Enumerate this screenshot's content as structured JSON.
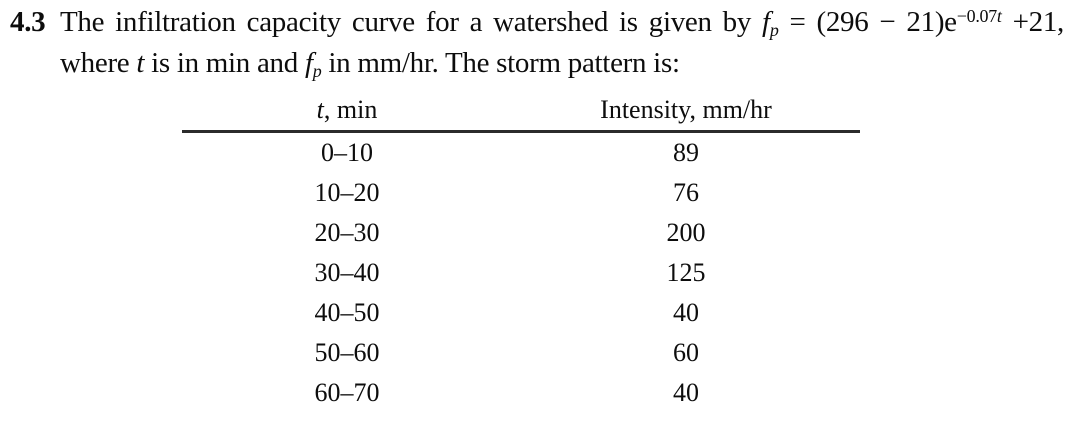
{
  "problem": {
    "number": "4.3",
    "line1": {
      "seg1": "The infiltration capacity curve for a watershed is given by ",
      "f_var": "f",
      "f_sub": "p",
      "seg2": " = (296 − 21)e",
      "exp_coeff": "−0.07",
      "exp_var": "t",
      "seg3": " +21,"
    },
    "line2": {
      "seg1": "where ",
      "t_var": "t",
      "seg2": " is in min and ",
      "f_var": "f",
      "f_sub": "p",
      "seg3": " in mm/hr. The storm pattern is:"
    }
  },
  "storm_table": {
    "col1_header_var": "t",
    "col1_header_rest": ", min",
    "col2_header": "Intensity, mm/hr",
    "rows": [
      {
        "t": "0–10",
        "intensity": "89"
      },
      {
        "t": "10–20",
        "intensity": "76"
      },
      {
        "t": "20–30",
        "intensity": "200"
      },
      {
        "t": "30–40",
        "intensity": "125"
      },
      {
        "t": "40–50",
        "intensity": "40"
      },
      {
        "t": "50–60",
        "intensity": "60"
      },
      {
        "t": "60–70",
        "intensity": "40"
      }
    ]
  }
}
